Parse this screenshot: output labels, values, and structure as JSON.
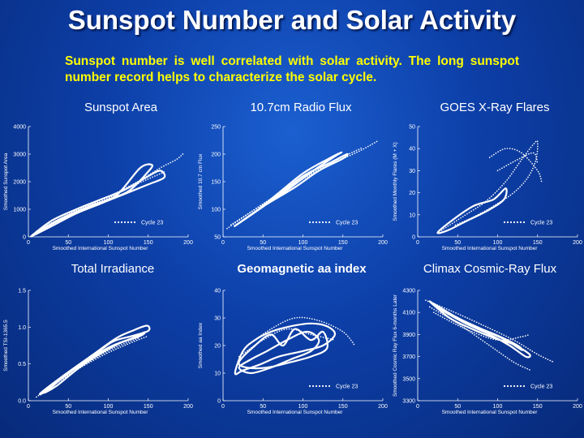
{
  "slide": {
    "title": "Sunspot Number and Solar Activity",
    "subtitle": "Sunspot number is well correlated with solar activity. The long sunspot number record helps to characterize the solar cycle."
  },
  "chart_data": [
    {
      "type": "scatter",
      "panel_title": "Sunspot Area",
      "xlabel": "Smoothed International Sunspot Number",
      "ylabel": "Smoothed Sunspot Area",
      "xlim": [
        0,
        200
      ],
      "ylim": [
        0,
        4000
      ],
      "xticks": [
        0,
        50,
        100,
        150,
        200
      ],
      "yticks": [
        0,
        1000,
        2000,
        3000,
        4000
      ],
      "legend": "Cycle 23",
      "series": [
        {
          "kind": "loop",
          "points": [
            [
              5,
              60
            ],
            [
              30,
              600
            ],
            [
              60,
              1000
            ],
            [
              90,
              1350
            ],
            [
              120,
              1700
            ],
            [
              150,
              2200
            ],
            [
              165,
              2400
            ],
            [
              170,
              2150
            ],
            [
              150,
              1900
            ],
            [
              120,
              1550
            ],
            [
              90,
              1200
            ],
            [
              60,
              850
            ],
            [
              30,
              400
            ],
            [
              8,
              80
            ]
          ]
        },
        {
          "kind": "loop",
          "points": [
            [
              10,
              150
            ],
            [
              40,
              650
            ],
            [
              80,
              1150
            ],
            [
              110,
              1500
            ],
            [
              140,
              2500
            ],
            [
              155,
              2600
            ],
            [
              148,
              2300
            ],
            [
              125,
              1650
            ],
            [
              95,
              1300
            ],
            [
              60,
              900
            ],
            [
              25,
              400
            ]
          ]
        },
        {
          "kind": "dotted",
          "points": [
            [
              5,
              80
            ],
            [
              40,
              650
            ],
            [
              80,
              1200
            ],
            [
              110,
              1600
            ],
            [
              140,
              2050
            ],
            [
              165,
              2500
            ],
            [
              185,
              2800
            ],
            [
              195,
              3050
            ]
          ]
        },
        {
          "kind": "dotted",
          "points": [
            [
              10,
              200
            ],
            [
              50,
              800
            ],
            [
              90,
              1250
            ],
            [
              120,
              1700
            ],
            [
              150,
              2100
            ],
            [
              170,
              2350
            ]
          ]
        },
        {
          "kind": "dotted",
          "points": [
            [
              15,
              300
            ],
            [
              60,
              950
            ],
            [
              100,
              1400
            ],
            [
              125,
              1800
            ]
          ]
        }
      ]
    },
    {
      "type": "scatter",
      "panel_title": "10.7cm Radio Flux",
      "xlabel": "Smoothed International Sunspot Number",
      "ylabel": "Smoothed 10.7 cm Flux",
      "xlim": [
        0,
        200
      ],
      "ylim": [
        50,
        250
      ],
      "xticks": [
        0,
        50,
        100,
        150,
        200
      ],
      "yticks": [
        50,
        100,
        150,
        200,
        250
      ],
      "legend": "Cycle 23",
      "series": [
        {
          "kind": "loop",
          "points": [
            [
              15,
              70
            ],
            [
              40,
              95
            ],
            [
              70,
              130
            ],
            [
              100,
              165
            ],
            [
              130,
              190
            ],
            [
              148,
              203
            ],
            [
              140,
              196
            ],
            [
              115,
              172
            ],
            [
              85,
              140
            ],
            [
              55,
              110
            ],
            [
              25,
              80
            ]
          ]
        },
        {
          "kind": "loop",
          "points": [
            [
              20,
              75
            ],
            [
              60,
              115
            ],
            [
              100,
              160
            ],
            [
              135,
              185
            ],
            [
              155,
              200
            ],
            [
              150,
              192
            ],
            [
              120,
              170
            ],
            [
              90,
              140
            ],
            [
              50,
              105
            ]
          ]
        },
        {
          "kind": "dotted",
          "points": [
            [
              5,
              65
            ],
            [
              50,
              110
            ],
            [
              100,
              155
            ],
            [
              140,
              185
            ],
            [
              170,
              205
            ],
            [
              195,
              225
            ]
          ]
        },
        {
          "kind": "dotted",
          "points": [
            [
              10,
              72
            ],
            [
              60,
              118
            ],
            [
              110,
              165
            ],
            [
              150,
              195
            ],
            [
              175,
              212
            ]
          ]
        }
      ]
    },
    {
      "type": "scatter",
      "panel_title": "GOES X-Ray Flares",
      "xlabel": "Smoothed International Sunspot Number",
      "ylabel": "Smoothed Monthly Flares (M + X)",
      "xlim": [
        0,
        200
      ],
      "ylim": [
        0,
        50
      ],
      "xticks": [
        0,
        50,
        100,
        150,
        200
      ],
      "yticks": [
        0,
        10,
        20,
        30,
        40,
        50
      ],
      "legend": "Cycle 23",
      "series": [
        {
          "kind": "loop",
          "points": [
            [
              25,
              2
            ],
            [
              45,
              8
            ],
            [
              70,
              14
            ],
            [
              95,
              17
            ],
            [
              110,
              22
            ],
            [
              108,
              17
            ],
            [
              88,
              12
            ],
            [
              60,
              7
            ],
            [
              38,
              3
            ]
          ]
        },
        {
          "kind": "dotted",
          "points": [
            [
              30,
              3
            ],
            [
              60,
              10
            ],
            [
              85,
              16
            ],
            [
              110,
              25
            ],
            [
              130,
              35
            ],
            [
              145,
              42
            ],
            [
              150,
              43
            ],
            [
              148,
              35
            ],
            [
              138,
              27
            ],
            [
              120,
              20
            ],
            [
              95,
              14
            ],
            [
              70,
              9
            ],
            [
              45,
              5
            ]
          ]
        },
        {
          "kind": "dotted",
          "points": [
            [
              90,
              36
            ],
            [
              110,
              40
            ],
            [
              130,
              38
            ],
            [
              150,
              30
            ],
            [
              155,
              25
            ]
          ]
        },
        {
          "kind": "dotted",
          "points": [
            [
              100,
              30
            ],
            [
              125,
              35
            ],
            [
              145,
              38
            ],
            [
              150,
              33
            ]
          ]
        }
      ]
    },
    {
      "type": "scatter",
      "panel_title": "Total Irradiance",
      "xlabel": "Smoothed International Sunspot Number",
      "ylabel": "Smoothed TSI-1365.5",
      "xlim": [
        0,
        200
      ],
      "ylim": [
        0,
        1.5
      ],
      "xticks": [
        0,
        50,
        100,
        150,
        200
      ],
      "yticks": [
        0.0,
        0.5,
        1.0,
        1.5
      ],
      "legend": "",
      "series": [
        {
          "kind": "loop",
          "points": [
            [
              15,
              0.1
            ],
            [
              45,
              0.35
            ],
            [
              80,
              0.62
            ],
            [
              110,
              0.85
            ],
            [
              130,
              0.95
            ],
            [
              148,
              1.02
            ],
            [
              150,
              0.95
            ],
            [
              130,
              0.88
            ],
            [
              105,
              0.8
            ],
            [
              80,
              0.6
            ],
            [
              50,
              0.38
            ],
            [
              25,
              0.15
            ]
          ]
        },
        {
          "kind": "loop",
          "points": [
            [
              20,
              0.12
            ],
            [
              60,
              0.45
            ],
            [
              100,
              0.72
            ],
            [
              130,
              0.85
            ],
            [
              145,
              0.93
            ],
            [
              140,
              0.88
            ],
            [
              110,
              0.76
            ],
            [
              70,
              0.5
            ],
            [
              35,
              0.2
            ]
          ]
        },
        {
          "kind": "dotted",
          "points": [
            [
              10,
              0.05
            ],
            [
              50,
              0.35
            ],
            [
              90,
              0.6
            ],
            [
              120,
              0.75
            ],
            [
              150,
              0.88
            ]
          ]
        },
        {
          "kind": "dotted",
          "points": [
            [
              15,
              0.08
            ],
            [
              60,
              0.42
            ],
            [
              100,
              0.68
            ],
            [
              140,
              0.86
            ]
          ]
        }
      ]
    },
    {
      "type": "scatter",
      "panel_title": "Geomagnetic aa index",
      "xlabel": "Smoothed International Sunspot Number",
      "ylabel": "Smoothed aa Index",
      "xlim": [
        0,
        200
      ],
      "ylim": [
        0,
        40
      ],
      "xticks": [
        0,
        50,
        100,
        150,
        200
      ],
      "yticks": [
        0,
        10,
        20,
        30,
        40
      ],
      "legend": "Cycle 23",
      "series": [
        {
          "kind": "loop",
          "points": [
            [
              15,
              10
            ],
            [
              25,
              18
            ],
            [
              40,
              22
            ],
            [
              60,
              25
            ],
            [
              85,
              27
            ],
            [
              110,
              28
            ],
            [
              130,
              27
            ],
            [
              140,
              24
            ],
            [
              125,
              20
            ],
            [
              100,
              18
            ],
            [
              70,
              16
            ],
            [
              45,
              13
            ],
            [
              25,
              11
            ]
          ]
        },
        {
          "kind": "loop",
          "points": [
            [
              20,
              14
            ],
            [
              40,
              20
            ],
            [
              60,
              24
            ],
            [
              75,
              20
            ],
            [
              90,
              26
            ],
            [
              110,
              22
            ],
            [
              125,
              25
            ],
            [
              130,
              19
            ],
            [
              110,
              16
            ],
            [
              85,
              14
            ],
            [
              55,
              12
            ],
            [
              30,
              12
            ]
          ]
        },
        {
          "kind": "loop",
          "points": [
            [
              20,
              12
            ],
            [
              35,
              15
            ],
            [
              55,
              18
            ],
            [
              80,
              22
            ],
            [
              105,
              25
            ],
            [
              120,
              22
            ],
            [
              110,
              18
            ],
            [
              85,
              15
            ],
            [
              60,
              12
            ],
            [
              35,
              10
            ]
          ]
        },
        {
          "kind": "dotted",
          "points": [
            [
              30,
              20
            ],
            [
              60,
              26
            ],
            [
              90,
              30
            ],
            [
              120,
              29
            ],
            [
              150,
              25
            ],
            [
              165,
              20
            ]
          ]
        },
        {
          "kind": "dotted",
          "points": [
            [
              20,
              16
            ],
            [
              50,
              22
            ],
            [
              80,
              26
            ],
            [
              110,
              24
            ],
            [
              140,
              22
            ]
          ]
        }
      ]
    },
    {
      "type": "scatter",
      "panel_title": "Climax Cosmic-Ray Flux",
      "xlabel": "Smoothed International Sunspot Number",
      "ylabel": "Smoothed Cosmic Ray Flux 6-months Later",
      "xlim": [
        0,
        200
      ],
      "ylim": [
        3300,
        4300
      ],
      "xticks": [
        0,
        50,
        100,
        150,
        200
      ],
      "yticks": [
        3300,
        3500,
        3700,
        3900,
        4100,
        4300
      ],
      "legend": "Cycle 23",
      "series": [
        {
          "kind": "loop",
          "points": [
            [
              15,
              4200
            ],
            [
              35,
              4100
            ],
            [
              60,
              4000
            ],
            [
              90,
              3900
            ],
            [
              115,
              3800
            ],
            [
              135,
              3700
            ],
            [
              140,
              3720
            ],
            [
              120,
              3810
            ],
            [
              95,
              3870
            ],
            [
              65,
              3960
            ],
            [
              40,
              4050
            ]
          ]
        },
        {
          "kind": "loop",
          "points": [
            [
              20,
              4180
            ],
            [
              50,
              4050
            ],
            [
              80,
              3950
            ],
            [
              110,
              3850
            ],
            [
              130,
              3760
            ],
            [
              125,
              3800
            ],
            [
              100,
              3890
            ],
            [
              70,
              3980
            ],
            [
              40,
              4090
            ]
          ]
        },
        {
          "kind": "dotted",
          "points": [
            [
              10,
              4210
            ],
            [
              40,
              4120
            ],
            [
              80,
              3990
            ],
            [
              120,
              3850
            ],
            [
              150,
              3720
            ],
            [
              170,
              3650
            ]
          ]
        },
        {
          "kind": "dotted",
          "points": [
            [
              15,
              4150
            ],
            [
              50,
              4000
            ],
            [
              90,
              3800
            ],
            [
              120,
              3650
            ],
            [
              140,
              3580
            ]
          ]
        },
        {
          "kind": "dotted",
          "points": [
            [
              20,
              4100
            ],
            [
              60,
              3950
            ],
            [
              100,
              3850
            ],
            [
              130,
              3880
            ],
            [
              140,
              3900
            ]
          ]
        }
      ]
    }
  ]
}
